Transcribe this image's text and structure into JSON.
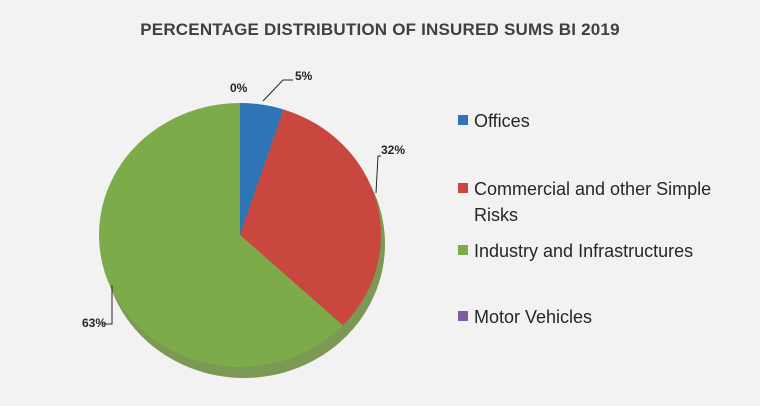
{
  "chart_data": {
    "type": "pie",
    "title": "PERCENTAGE DISTRIBUTION OF INSURED SUMS BI 2019",
    "categories": [
      "Offices",
      "Commercial and other Simple Risks",
      "Industry and Infrastructures",
      "Motor Vehicles"
    ],
    "values": [
      5,
      32,
      63,
      0
    ],
    "data_labels": [
      "5%",
      "32%",
      "63%",
      "0%"
    ],
    "colors": [
      "#2e75b6",
      "#c9473f",
      "#7eab4a",
      "#7e5ea3"
    ],
    "legend_position": "right"
  }
}
